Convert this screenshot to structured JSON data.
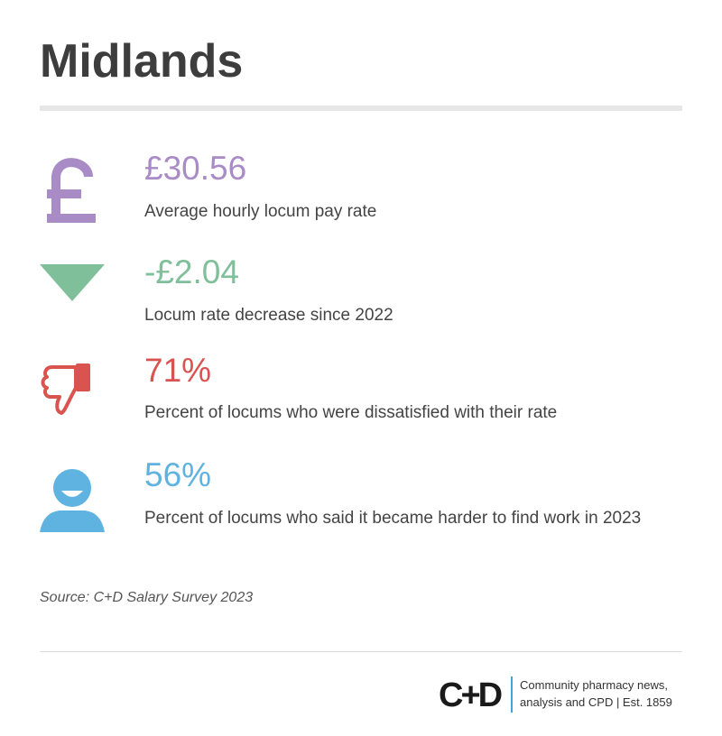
{
  "header": {
    "title": "Midlands"
  },
  "stats": [
    {
      "value": "£30.56",
      "label": "Average hourly locum pay rate"
    },
    {
      "value": "-£2.04",
      "label": "Locum rate decrease since 2022"
    },
    {
      "value": "71%",
      "label": "Percent of locums who were dissatisfied with their rate"
    },
    {
      "value": "56%",
      "label": "Percent of locums who said it became harder to find work in 2023"
    }
  ],
  "source": "Source: C+D Salary Survey 2023",
  "footer": {
    "logo": "C+D",
    "tagline_1": "Community pharmacy news,",
    "tagline_2": "analysis and CPD | Est. 1859"
  }
}
